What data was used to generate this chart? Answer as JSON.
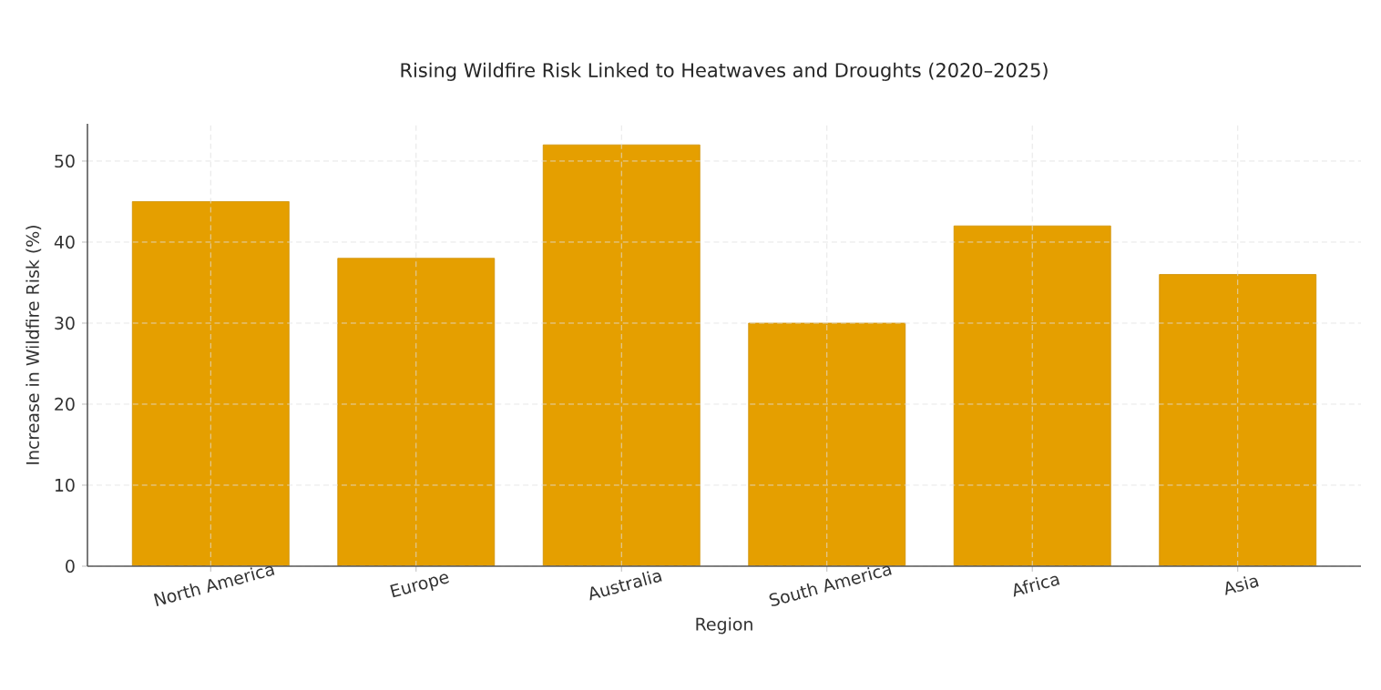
{
  "chart_data": {
    "type": "bar",
    "title": "Rising Wildfire Risk Linked to Heatwaves and Droughts (2020–2025)",
    "xlabel": "Region",
    "ylabel": "Increase in Wildfire Risk (%)",
    "categories": [
      "North America",
      "Europe",
      "Australia",
      "South America",
      "Africa",
      "Asia"
    ],
    "values": [
      45,
      38,
      52,
      30,
      42,
      36
    ],
    "color": "#e59f00",
    "ylim": [
      0,
      54.6
    ],
    "yticks": [
      0,
      10,
      20,
      30,
      40,
      50
    ],
    "grid": true
  }
}
